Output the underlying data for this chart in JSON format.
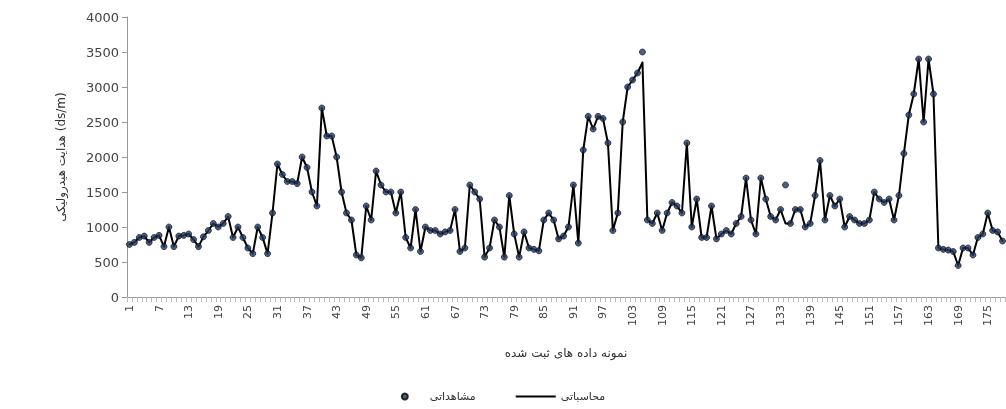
{
  "chart_data": {
    "type": "line",
    "xlabel": "نمونه داده های ثبت شده",
    "ylabel": "هدایت هیدرولیکی (ds/m)",
    "categories": [
      "1",
      null,
      null,
      null,
      null,
      null,
      "7",
      null,
      null,
      null,
      null,
      null,
      "13",
      null,
      null,
      null,
      null,
      null,
      "19",
      null,
      null,
      null,
      null,
      null,
      "25",
      null,
      null,
      null,
      null,
      null,
      "31",
      null,
      null,
      null,
      null,
      null,
      "37",
      null,
      null,
      null,
      null,
      null,
      "43",
      null,
      null,
      null,
      null,
      null,
      "49",
      null,
      null,
      null,
      null,
      null,
      "55",
      null,
      null,
      null,
      null,
      null,
      "61",
      null,
      null,
      null,
      null,
      null,
      "67",
      null,
      null,
      null,
      null,
      null,
      "73",
      null,
      null,
      null,
      null,
      null,
      "79",
      null,
      null,
      null,
      null,
      null,
      "85",
      null,
      null,
      null,
      null,
      null,
      "91",
      null,
      null,
      null,
      null,
      null,
      "97",
      null,
      null,
      null,
      null,
      null,
      "103",
      null,
      null,
      null,
      null,
      null,
      "109",
      null,
      null,
      null,
      null,
      null,
      "115",
      null,
      null,
      null,
      null,
      null,
      "121",
      null,
      null,
      null,
      null,
      null,
      "127",
      null,
      null,
      null,
      null,
      null,
      "133",
      null,
      null,
      null,
      null,
      null,
      "139",
      null,
      null,
      null,
      null,
      null,
      "145",
      null,
      null,
      null,
      null,
      null,
      "151",
      null,
      null,
      null,
      null,
      null,
      "157",
      null,
      null,
      null,
      null,
      null,
      "163",
      null,
      null,
      null,
      null,
      null,
      "169",
      null,
      null,
      null,
      null,
      null,
      "175",
      null,
      null,
      null
    ],
    "ylim": [
      0,
      4000
    ],
    "yticks": [
      0,
      500,
      1000,
      1500,
      2000,
      2500,
      3000,
      3500,
      4000
    ],
    "grid": false,
    "legend": "bottom",
    "series": [
      {
        "name": "مشاهداتی",
        "type": "scatter",
        "marker": "circle",
        "color": "#1f3864",
        "values": [
          750,
          780,
          850,
          870,
          780,
          850,
          880,
          720,
          1000,
          720,
          870,
          880,
          900,
          820,
          720,
          860,
          950,
          1050,
          1000,
          1050,
          1150,
          850,
          1000,
          850,
          700,
          620,
          1000,
          850,
          620,
          1200,
          1900,
          1750,
          1650,
          1650,
          1620,
          2000,
          1850,
          1500,
          1300,
          2700,
          2300,
          2300,
          2000,
          1500,
          1200,
          1100,
          600,
          560,
          1300,
          1100,
          1800,
          1600,
          1500,
          1500,
          1200,
          1500,
          850,
          700,
          1250,
          650,
          1000,
          950,
          950,
          900,
          930,
          950,
          1250,
          650,
          700,
          1600,
          1500,
          1400,
          570,
          700,
          1100,
          1000,
          570,
          1450,
          900,
          570,
          930,
          700,
          680,
          660,
          1100,
          1200,
          1100,
          830,
          870,
          1000,
          1600,
          770,
          2100,
          2580,
          2400,
          2580,
          2550,
          2200,
          950,
          1200,
          2500,
          3000,
          3100,
          3200,
          3500,
          1100,
          1050,
          1200,
          950,
          1200,
          1350,
          1300,
          1200,
          2200,
          1000,
          1400,
          850,
          850,
          1300,
          830,
          900,
          950,
          900,
          1050,
          1150,
          1700,
          1100,
          900,
          1700,
          1400,
          1150,
          1100,
          1250,
          1600,
          1050,
          1250,
          1250,
          1000,
          1050,
          1450,
          1950,
          1100,
          1450,
          1300,
          1400,
          1000,
          1150,
          1100,
          1050,
          1050,
          1100,
          1500,
          1400,
          1350,
          1400,
          1100,
          1450,
          2050,
          2600,
          2900,
          3400,
          2500,
          3400,
          2900,
          700,
          680,
          670,
          650,
          450,
          700,
          700,
          600,
          850,
          900,
          1200,
          950,
          930,
          800
        ]
      },
      {
        "name": "محاسباتی",
        "marker": "none",
        "line_style": "solid",
        "color": "#000000",
        "values": [
          750,
          780,
          850,
          870,
          780,
          850,
          880,
          720,
          1000,
          720,
          870,
          880,
          900,
          820,
          720,
          860,
          950,
          1050,
          1000,
          1050,
          1150,
          850,
          1000,
          850,
          700,
          620,
          1000,
          850,
          620,
          1200,
          1900,
          1750,
          1650,
          1650,
          1620,
          2000,
          1850,
          1500,
          1300,
          2700,
          2300,
          2300,
          2000,
          1500,
          1200,
          1100,
          600,
          560,
          1300,
          1100,
          1800,
          1600,
          1500,
          1500,
          1200,
          1500,
          850,
          700,
          1250,
          650,
          1000,
          950,
          950,
          900,
          930,
          950,
          1250,
          650,
          700,
          1600,
          1500,
          1400,
          570,
          700,
          1100,
          1000,
          570,
          1450,
          900,
          570,
          930,
          700,
          680,
          660,
          1100,
          1200,
          1100,
          830,
          870,
          1000,
          1600,
          770,
          2100,
          2580,
          2400,
          2580,
          2550,
          2200,
          950,
          1200,
          2500,
          3000,
          3100,
          3200,
          3350,
          1100,
          1050,
          1200,
          950,
          1200,
          1350,
          1300,
          1200,
          2200,
          1000,
          1400,
          850,
          850,
          1300,
          830,
          900,
          950,
          900,
          1050,
          1150,
          1700,
          1100,
          900,
          1700,
          1400,
          1150,
          1100,
          1250,
          1050,
          1050,
          1250,
          1250,
          1000,
          1050,
          1450,
          1950,
          1100,
          1450,
          1300,
          1400,
          1000,
          1150,
          1100,
          1050,
          1050,
          1100,
          1500,
          1400,
          1350,
          1400,
          1100,
          1450,
          2050,
          2600,
          2900,
          3400,
          2500,
          3400,
          2900,
          700,
          680,
          670,
          650,
          450,
          700,
          700,
          600,
          850,
          900,
          1200,
          950,
          930,
          800
        ]
      }
    ]
  }
}
